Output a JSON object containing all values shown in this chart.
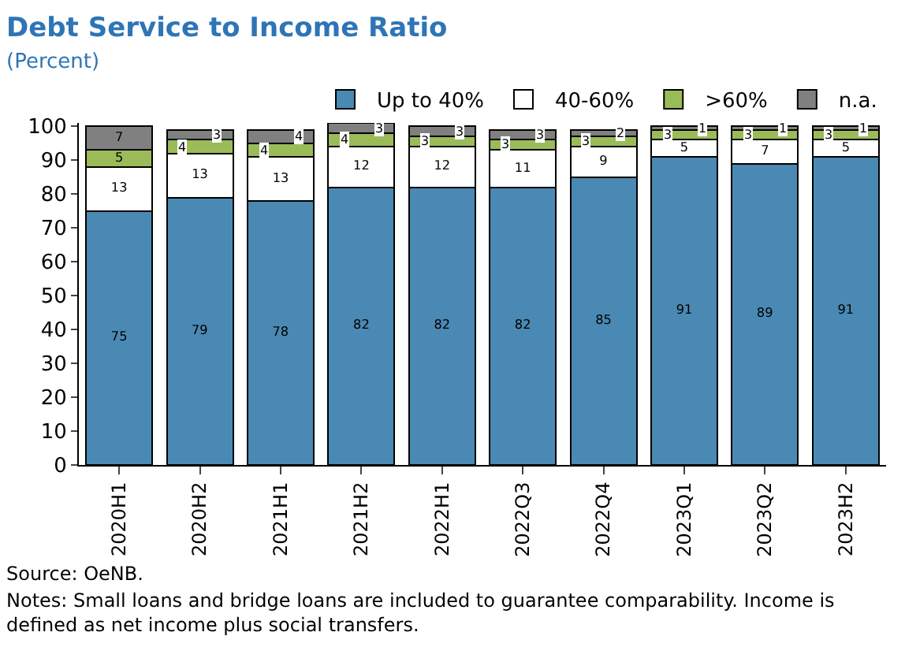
{
  "chart_data": {
    "type": "bar",
    "title": "Debt Service to Income Ratio",
    "subtitle": "(Percent)",
    "categories": [
      "2020H1",
      "2020H2",
      "2021H1",
      "2021H2",
      "2022H1",
      "2022Q3",
      "2022Q4",
      "2023Q1",
      "2023Q2",
      "2023H2"
    ],
    "stacked": true,
    "series": [
      {
        "name": "Up to 40%",
        "color": "#4a89b3",
        "values": [
          75,
          79,
          78,
          82,
          82,
          82,
          85,
          91,
          89,
          91
        ]
      },
      {
        "name": "40-60%",
        "color": "#ffffff",
        "values": [
          13,
          13,
          13,
          12,
          12,
          11,
          9,
          5,
          7,
          5
        ]
      },
      {
        "name": ">60%",
        "color": "#9bbb59",
        "values": [
          5,
          4,
          4,
          4,
          3,
          3,
          3,
          3,
          3,
          3
        ]
      },
      {
        "name": "n.a.",
        "color": "#808080",
        "values": [
          7,
          3,
          4,
          3,
          3,
          3,
          2,
          1,
          1,
          1
        ]
      }
    ],
    "ylim": [
      0,
      101
    ],
    "yticks": [
      0,
      10,
      20,
      30,
      40,
      50,
      60,
      70,
      80,
      90,
      100
    ],
    "data_labels": true,
    "legend": "top right",
    "annotations": [
      "Source: OeNB.",
      "Notes: Small loans and bridge loans are included to guarantee comparability. Income is defined as net income plus social transfers."
    ]
  }
}
